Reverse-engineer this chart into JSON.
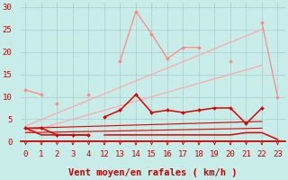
{
  "background_color": "#c8ece8",
  "grid_color": "#aacccc",
  "x_ticks_labels": [
    0,
    1,
    2,
    3,
    4,
    12,
    13,
    14,
    15,
    16,
    17,
    18,
    19,
    20,
    21,
    22,
    23
  ],
  "x_label": "Vent moyen/en rafales ( km/h )",
  "y_ticks": [
    0,
    5,
    10,
    15,
    20,
    25,
    30
  ],
  "ylim": [
    0,
    31
  ],
  "xlim": [
    0,
    23.5
  ],
  "figsize": [
    3.2,
    2.0
  ],
  "dpi": 100,
  "lines": [
    {
      "x": [
        0,
        1,
        2,
        3,
        4,
        5,
        6,
        7,
        8,
        9,
        10,
        11,
        12,
        13,
        14,
        15,
        16,
        17,
        18,
        19,
        20,
        21,
        22,
        23
      ],
      "y": [
        11.5,
        10.5,
        null,
        null,
        null,
        null,
        null,
        null,
        null,
        null,
        null,
        null,
        null,
        18.0,
        29.0,
        24.0,
        18.5,
        21.0,
        21.0,
        null,
        18.0,
        null,
        26.5,
        10.0
      ],
      "color": "#ff8888",
      "linewidth": 0.9,
      "marker": "D",
      "markersize": 2.0,
      "zorder": 4
    },
    {
      "x": [
        2,
        4
      ],
      "y": [
        8.5,
        10.5
      ],
      "color": "#ff8888",
      "linewidth": 0,
      "marker": "D",
      "markersize": 2.0,
      "zorder": 4
    },
    {
      "x": [
        0,
        22
      ],
      "y": [
        3.5,
        25.0
      ],
      "color": "#ffaaaa",
      "linewidth": 0.9,
      "marker": null,
      "markersize": 0,
      "zorder": 2
    },
    {
      "x": [
        0,
        22
      ],
      "y": [
        2.0,
        17.0
      ],
      "color": "#ffaaaa",
      "linewidth": 0.9,
      "marker": null,
      "markersize": 0,
      "zorder": 2
    },
    {
      "x": [
        0,
        1,
        2,
        3,
        4,
        5,
        6,
        7,
        8,
        9,
        10,
        11,
        12,
        13,
        14,
        15,
        16,
        17,
        18,
        19,
        20,
        21,
        22
      ],
      "y": [
        3.0,
        3.0,
        1.5,
        1.5,
        1.5,
        null,
        null,
        null,
        null,
        null,
        null,
        null,
        5.5,
        7.0,
        10.5,
        6.5,
        7.0,
        6.5,
        7.0,
        7.5,
        7.5,
        4.0,
        7.5
      ],
      "color": "#dd0000",
      "linewidth": 1.1,
      "marker": "D",
      "markersize": 2.0,
      "zorder": 5
    },
    {
      "x": [
        0,
        1,
        2,
        3,
        4,
        5,
        6,
        7,
        8,
        9,
        10,
        11,
        12,
        13,
        14,
        15,
        16,
        17,
        18,
        19,
        20,
        21,
        22,
        23
      ],
      "y": [
        3.0,
        1.5,
        1.5,
        1.5,
        1.5,
        null,
        null,
        null,
        null,
        null,
        null,
        null,
        1.5,
        1.5,
        1.5,
        1.5,
        1.5,
        1.5,
        1.5,
        1.5,
        1.5,
        2.0,
        2.0,
        0.5
      ],
      "color": "#dd0000",
      "linewidth": 1.1,
      "marker": null,
      "markersize": 0,
      "zorder": 5
    },
    {
      "x": [
        0,
        22
      ],
      "y": [
        3.0,
        4.5
      ],
      "color": "#dd0000",
      "linewidth": 0.8,
      "marker": null,
      "markersize": 0,
      "zorder": 3
    },
    {
      "x": [
        0,
        22
      ],
      "y": [
        2.0,
        3.0
      ],
      "color": "#dd0000",
      "linewidth": 0.8,
      "marker": null,
      "markersize": 0,
      "zorder": 3
    }
  ],
  "tick_arrow_color": "#cc0000",
  "axis_line_color": "#cc0000",
  "tick_label_color": "#cc0000",
  "xlabel_color": "#cc0000",
  "xlabel_fontsize": 7.5,
  "tick_fontsize": 6.5,
  "ytick_fontsize": 6.5
}
